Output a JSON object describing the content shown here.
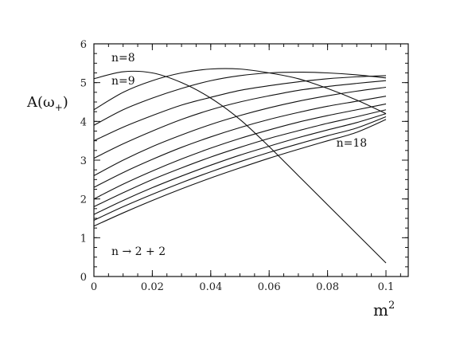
{
  "chart_data": {
    "type": "line",
    "xlabel": "m",
    "xlabel_sup": "2",
    "ylabel": "A(ω",
    "ylabel_sub": "+",
    "ylabel_close": ")",
    "xlim": [
      0,
      0.1
    ],
    "ylim": [
      0,
      6
    ],
    "xticks": [
      "0",
      "0.02",
      "0.04",
      "0.06",
      "0.08",
      "0.1"
    ],
    "yticks": [
      "0",
      "1",
      "2",
      "3",
      "4",
      "5",
      "6"
    ],
    "grid": false,
    "annotations": [
      {
        "text": "n=8",
        "x": 0.006,
        "y": 5.55
      },
      {
        "text": "n=9",
        "x": 0.006,
        "y": 4.95
      },
      {
        "text": "n=18",
        "x": 0.083,
        "y": 3.35
      },
      {
        "text": "n → 2 + 2",
        "x": 0.006,
        "y": 0.55
      }
    ],
    "series": [
      {
        "x": [
          0,
          0.01,
          0.02,
          0.03,
          0.04,
          0.05,
          0.06,
          0.07,
          0.08,
          0.09,
          0.1
        ],
        "values": [
          5.1,
          5.28,
          5.25,
          5.0,
          4.6,
          4.05,
          3.35,
          2.6,
          1.85,
          1.1,
          0.35
        ]
      },
      {
        "x": [
          0,
          0.01,
          0.02,
          0.03,
          0.04,
          0.05,
          0.06,
          0.07,
          0.08,
          0.09,
          0.1
        ],
        "values": [
          4.3,
          4.75,
          5.05,
          5.25,
          5.35,
          5.35,
          5.25,
          5.1,
          4.85,
          4.55,
          4.2
        ]
      },
      {
        "x": [
          0,
          0.01,
          0.02,
          0.03,
          0.04,
          0.05,
          0.06,
          0.07,
          0.08,
          0.09,
          0.1
        ],
        "values": [
          3.9,
          4.3,
          4.6,
          4.85,
          5.05,
          5.18,
          5.25,
          5.27,
          5.25,
          5.2,
          5.12
        ]
      },
      {
        "x": [
          0,
          0.01,
          0.02,
          0.03,
          0.04,
          0.05,
          0.06,
          0.07,
          0.08,
          0.09,
          0.1
        ],
        "values": [
          3.5,
          3.85,
          4.15,
          4.42,
          4.62,
          4.8,
          4.92,
          5.02,
          5.1,
          5.15,
          5.18
        ]
      },
      {
        "x": [
          0,
          0.01,
          0.02,
          0.03,
          0.04,
          0.05,
          0.06,
          0.07,
          0.08,
          0.09,
          0.1
        ],
        "values": [
          3.05,
          3.42,
          3.75,
          4.05,
          4.3,
          4.5,
          4.66,
          4.8,
          4.9,
          4.98,
          5.05
        ]
      },
      {
        "x": [
          0,
          0.01,
          0.02,
          0.03,
          0.04,
          0.05,
          0.06,
          0.07,
          0.08,
          0.09,
          0.1
        ],
        "values": [
          2.6,
          3.0,
          3.35,
          3.65,
          3.92,
          4.15,
          4.35,
          4.52,
          4.66,
          4.78,
          4.88
        ]
      },
      {
        "x": [
          0,
          0.01,
          0.02,
          0.03,
          0.04,
          0.05,
          0.06,
          0.07,
          0.08,
          0.09,
          0.1
        ],
        "values": [
          2.3,
          2.68,
          3.02,
          3.33,
          3.6,
          3.84,
          4.05,
          4.23,
          4.39,
          4.52,
          4.65
        ]
      },
      {
        "x": [
          0,
          0.01,
          0.02,
          0.03,
          0.04,
          0.05,
          0.06,
          0.07,
          0.08,
          0.09,
          0.1
        ],
        "values": [
          2.0,
          2.38,
          2.72,
          3.03,
          3.31,
          3.56,
          3.78,
          3.98,
          4.15,
          4.3,
          4.45
        ]
      },
      {
        "x": [
          0,
          0.01,
          0.02,
          0.03,
          0.04,
          0.05,
          0.06,
          0.07,
          0.08,
          0.09,
          0.1
        ],
        "values": [
          1.8,
          2.16,
          2.5,
          2.8,
          3.08,
          3.33,
          3.56,
          3.76,
          3.95,
          4.12,
          4.3
        ]
      },
      {
        "x": [
          0,
          0.01,
          0.02,
          0.03,
          0.04,
          0.05,
          0.06,
          0.07,
          0.08,
          0.09,
          0.1
        ],
        "values": [
          1.6,
          1.96,
          2.29,
          2.59,
          2.87,
          3.13,
          3.36,
          3.58,
          3.78,
          3.97,
          4.2
        ]
      },
      {
        "x": [
          0,
          0.01,
          0.02,
          0.03,
          0.04,
          0.05,
          0.06,
          0.07,
          0.08,
          0.09,
          0.1
        ],
        "values": [
          1.45,
          1.8,
          2.12,
          2.42,
          2.7,
          2.96,
          3.2,
          3.42,
          3.63,
          3.83,
          4.12
        ]
      },
      {
        "x": [
          0,
          0.01,
          0.02,
          0.03,
          0.04,
          0.05,
          0.06,
          0.07,
          0.08,
          0.09,
          0.1
        ],
        "values": [
          1.3,
          1.64,
          1.96,
          2.26,
          2.54,
          2.8,
          3.05,
          3.28,
          3.5,
          3.72,
          4.05
        ]
      }
    ]
  }
}
